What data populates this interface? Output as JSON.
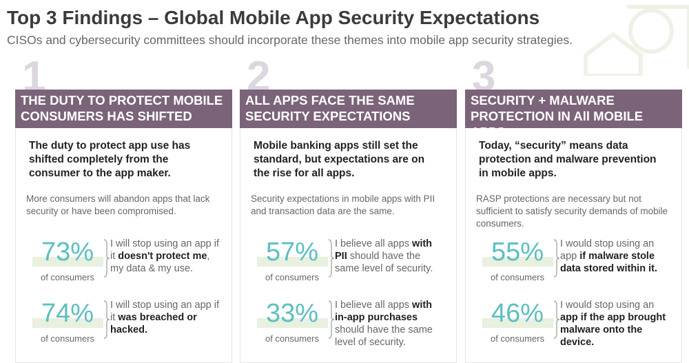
{
  "header": {
    "title": "Top 3 Findings – Global Mobile App Security Expectations",
    "subtitle": "CISOs and cybersecurity committees should incorporate these themes into mobile app security strategies."
  },
  "columns": [
    {
      "number": "1",
      "heading": "THE DUTY TO PROTECT MOBILE CONSUMERS HAS SHIFTED",
      "lead": "The duty to protect app use has shifted completely from the consumer to the app maker.",
      "note": "More consumers will abandon apps that lack security or have been compromised.",
      "stats": [
        {
          "value": "73%",
          "label": "of consumers",
          "text": [
            {
              "text": "I will stop using an app if it ",
              "bold": false
            },
            {
              "text": "doesn't protect me",
              "bold": true
            },
            {
              "text": ", my data & my use.",
              "bold": false
            }
          ]
        },
        {
          "value": "74%",
          "label": "of consumers",
          "text": [
            {
              "text": "I will stop using an app if it ",
              "bold": false
            },
            {
              "text": "was breached or hacked.",
              "bold": true
            }
          ]
        }
      ]
    },
    {
      "number": "2",
      "heading": "ALL APPS FACE THE SAME SECURITY EXPECTATIONS",
      "lead": "Mobile banking apps still set the standard, but expectations are on the rise for all apps.",
      "note": "Security expectations in mobile apps with PII and transaction data are the same.",
      "stats": [
        {
          "value": "57%",
          "label": "of consumers",
          "text": [
            {
              "text": "I believe all apps ",
              "bold": false
            },
            {
              "text": "with PII",
              "bold": true
            },
            {
              "text": " should have the same level of security.",
              "bold": false
            }
          ]
        },
        {
          "value": "33%",
          "label": "of consumers",
          "text": [
            {
              "text": "I believe all apps ",
              "bold": false
            },
            {
              "text": "with in-app purchases",
              "bold": true
            },
            {
              "text": " should have the same level of security.",
              "bold": false
            }
          ]
        }
      ]
    },
    {
      "number": "3",
      "heading": "SECURITY + MALWARE PROTECTION IN All MOBILE APPS",
      "lead": "Today, “security” means data protection and malware prevention in mobile apps.",
      "note": "RASP protections are necessary but not sufficient to satisfy security demands of mobile consumers.",
      "stats": [
        {
          "value": "55%",
          "label": "of consumers",
          "text": [
            {
              "text": "I would stop using an app ",
              "bold": false
            },
            {
              "text": "if malware stole data stored within it.",
              "bold": true
            }
          ]
        },
        {
          "value": "46%",
          "label": "of consumers",
          "text": [
            {
              "text": "I would stop using an ",
              "bold": false
            },
            {
              "text": "app if the app brought malware onto the device.",
              "bold": true
            }
          ]
        }
      ]
    }
  ]
}
